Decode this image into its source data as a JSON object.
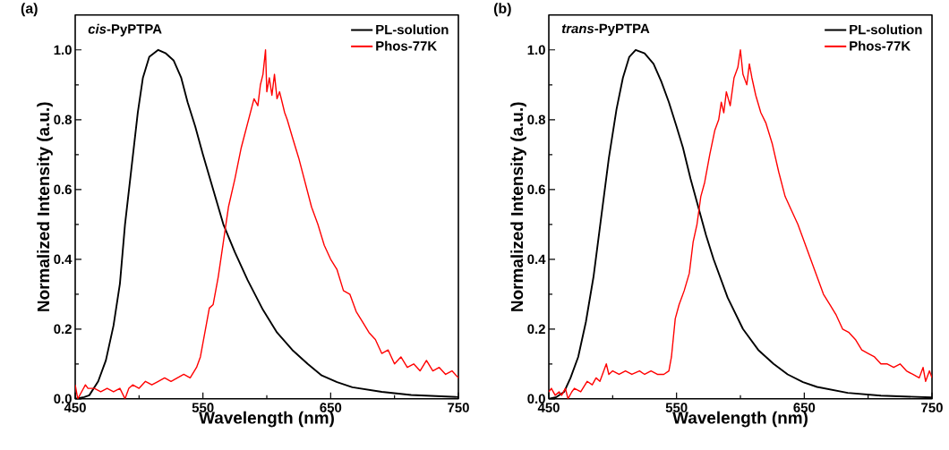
{
  "chart_data": [
    {
      "type": "line",
      "title": "(a)",
      "annotations": [
        "*cis*-PyPTPA"
      ],
      "xlabel": "Wavelength (nm)",
      "ylabel": "Normalized Intensity (a.u.)",
      "xlim": [
        450,
        750
      ],
      "ylim": [
        0,
        1.1
      ],
      "xticks": [
        450,
        {
          "value": 500,
          "label": null
        },
        550,
        {
          "value": 600,
          "label": null
        },
        650,
        {
          "value": 700,
          "label": null
        },
        750
      ],
      "yticks": [
        {
          "value": 0,
          "label": "0.0"
        },
        {
          "value": 0.1,
          "label": null
        },
        {
          "value": 0.2,
          "label": "0.2"
        },
        {
          "value": 0.3,
          "label": null
        },
        {
          "value": 0.4,
          "label": "0.4"
        },
        {
          "value": 0.5,
          "label": null
        },
        {
          "value": 0.6,
          "label": "0.6"
        },
        {
          "value": 0.7,
          "label": null
        },
        {
          "value": 0.8,
          "label": "0.8"
        },
        {
          "value": 0.9,
          "label": null
        },
        {
          "value": 1.0,
          "label": "1.0"
        }
      ],
      "legend": "top right",
      "marker": "none",
      "line_style": "solid",
      "series": [
        {
          "name": "PL-solution",
          "color": "#000000",
          "x": [
            450,
            457,
            461,
            468,
            474,
            480,
            485,
            489,
            494,
            499,
            503,
            508,
            515,
            521,
            527,
            533,
            538,
            544,
            550,
            558,
            566,
            575,
            585,
            597,
            608,
            620,
            632,
            643,
            655,
            667,
            690,
            713,
            750
          ],
          "values": [
            0.0,
            0.005,
            0.01,
            0.05,
            0.11,
            0.21,
            0.33,
            0.5,
            0.66,
            0.82,
            0.92,
            0.98,
            1.0,
            0.99,
            0.97,
            0.92,
            0.85,
            0.78,
            0.7,
            0.6,
            0.5,
            0.42,
            0.34,
            0.255,
            0.19,
            0.14,
            0.1,
            0.067,
            0.048,
            0.033,
            0.02,
            0.011,
            0.005
          ]
        },
        {
          "name": "Phos-77K",
          "color": "#ff0000",
          "x": [
            450,
            452,
            455,
            458,
            460,
            465,
            470,
            475,
            480,
            485,
            489,
            492,
            495,
            500,
            505,
            510,
            515,
            520,
            525,
            530,
            535,
            540,
            545,
            548,
            550,
            552,
            555,
            558,
            562,
            566,
            570,
            575,
            580,
            585,
            590,
            593,
            595,
            597,
            599,
            600,
            602,
            604,
            606,
            608,
            610,
            612,
            614,
            616,
            620,
            625,
            630,
            635,
            640,
            645,
            650,
            655,
            660,
            665,
            670,
            675,
            680,
            685,
            690,
            695,
            700,
            705,
            710,
            715,
            720,
            725,
            730,
            735,
            740,
            745,
            750
          ],
          "values": [
            0.04,
            0.0,
            0.02,
            0.04,
            0.03,
            0.03,
            0.02,
            0.03,
            0.02,
            0.03,
            0.0,
            0.03,
            0.04,
            0.03,
            0.05,
            0.04,
            0.05,
            0.06,
            0.05,
            0.06,
            0.07,
            0.06,
            0.09,
            0.12,
            0.16,
            0.2,
            0.26,
            0.27,
            0.35,
            0.45,
            0.55,
            0.63,
            0.72,
            0.79,
            0.86,
            0.84,
            0.9,
            0.93,
            1.0,
            0.88,
            0.92,
            0.87,
            0.93,
            0.86,
            0.88,
            0.85,
            0.82,
            0.8,
            0.75,
            0.69,
            0.62,
            0.55,
            0.5,
            0.44,
            0.4,
            0.37,
            0.31,
            0.3,
            0.25,
            0.22,
            0.19,
            0.17,
            0.13,
            0.14,
            0.1,
            0.12,
            0.09,
            0.1,
            0.08,
            0.11,
            0.08,
            0.09,
            0.07,
            0.08,
            0.06
          ]
        }
      ]
    },
    {
      "type": "line",
      "title": "(b)",
      "annotations": [
        "*trans*-PyPTPA"
      ],
      "xlabel": "Wavelength (nm)",
      "ylabel": "Normalized Intensity (a.u.)",
      "xlim": [
        450,
        750
      ],
      "ylim": [
        0,
        1.1
      ],
      "xticks": [
        450,
        {
          "value": 500,
          "label": null
        },
        550,
        {
          "value": 600,
          "label": null
        },
        650,
        {
          "value": 700,
          "label": null
        },
        750
      ],
      "yticks": [
        {
          "value": 0,
          "label": "0.0"
        },
        {
          "value": 0.1,
          "label": null
        },
        {
          "value": 0.2,
          "label": "0.2"
        },
        {
          "value": 0.3,
          "label": null
        },
        {
          "value": 0.4,
          "label": "0.4"
        },
        {
          "value": 0.5,
          "label": null
        },
        {
          "value": 0.6,
          "label": "0.6"
        },
        {
          "value": 0.7,
          "label": null
        },
        {
          "value": 0.8,
          "label": "0.8"
        },
        {
          "value": 0.9,
          "label": null
        },
        {
          "value": 1.0,
          "label": "1.0"
        }
      ],
      "legend": "top right",
      "marker": "none",
      "line_style": "solid",
      "series": [
        {
          "name": "PL-solution",
          "color": "#000000",
          "x": [
            450,
            456,
            462,
            467,
            473,
            479,
            485,
            491,
            497,
            503,
            508,
            513,
            518,
            525,
            532,
            538,
            544,
            550,
            555,
            561,
            567,
            573,
            579,
            590,
            602,
            614,
            626,
            637,
            649,
            660,
            684,
            710,
            750
          ],
          "values": [
            0.0,
            0.005,
            0.02,
            0.06,
            0.12,
            0.22,
            0.35,
            0.52,
            0.69,
            0.83,
            0.92,
            0.98,
            1.0,
            0.99,
            0.96,
            0.91,
            0.85,
            0.78,
            0.72,
            0.63,
            0.55,
            0.47,
            0.4,
            0.29,
            0.2,
            0.14,
            0.1,
            0.07,
            0.048,
            0.034,
            0.017,
            0.009,
            0.004
          ]
        },
        {
          "name": "Phos-77K",
          "color": "#ff0000",
          "x": [
            450,
            452,
            455,
            458,
            460,
            463,
            465,
            468,
            470,
            475,
            480,
            484,
            487,
            490,
            492,
            495,
            497,
            500,
            505,
            510,
            515,
            521,
            525,
            530,
            535,
            540,
            544,
            546,
            549,
            552,
            556,
            560,
            563,
            566,
            569,
            572,
            576,
            580,
            583,
            585,
            587,
            589,
            592,
            595,
            598,
            600,
            602,
            605,
            607,
            609,
            612,
            616,
            620,
            625,
            630,
            635,
            640,
            645,
            650,
            655,
            660,
            665,
            670,
            675,
            680,
            685,
            690,
            695,
            700,
            705,
            710,
            715,
            720,
            725,
            730,
            735,
            740,
            743,
            745,
            748,
            750
          ],
          "values": [
            0.02,
            0.03,
            0.01,
            0.02,
            0.01,
            0.03,
            0.0,
            0.02,
            0.03,
            0.02,
            0.05,
            0.04,
            0.06,
            0.05,
            0.07,
            0.1,
            0.07,
            0.08,
            0.07,
            0.08,
            0.07,
            0.08,
            0.07,
            0.08,
            0.07,
            0.07,
            0.08,
            0.12,
            0.23,
            0.27,
            0.31,
            0.36,
            0.45,
            0.5,
            0.58,
            0.62,
            0.7,
            0.77,
            0.8,
            0.85,
            0.82,
            0.88,
            0.84,
            0.92,
            0.95,
            1.0,
            0.93,
            0.9,
            0.96,
            0.92,
            0.87,
            0.82,
            0.79,
            0.73,
            0.65,
            0.58,
            0.54,
            0.5,
            0.45,
            0.4,
            0.35,
            0.3,
            0.27,
            0.24,
            0.2,
            0.19,
            0.17,
            0.14,
            0.13,
            0.12,
            0.1,
            0.1,
            0.09,
            0.1,
            0.08,
            0.07,
            0.06,
            0.09,
            0.05,
            0.08,
            0.06
          ]
        }
      ]
    }
  ]
}
